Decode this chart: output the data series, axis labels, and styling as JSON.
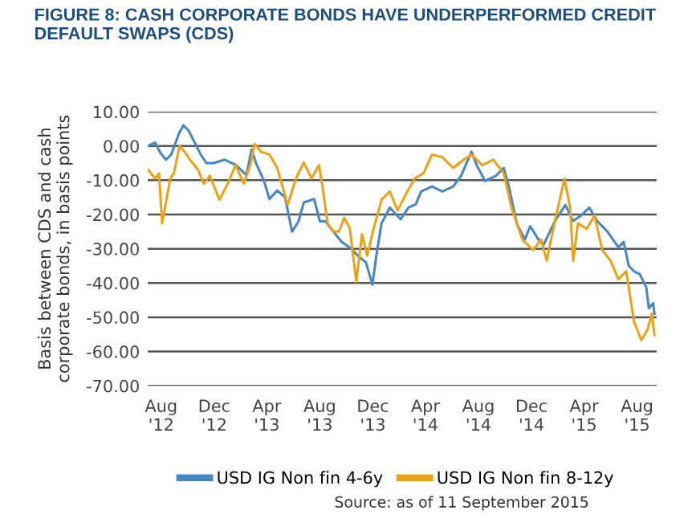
{
  "chart_data": {
    "type": "line",
    "title": "FIGURE 8: CASH CORPORATE BONDS HAVE UNDERPERFORMED CREDIT\nDEFAULT SWAPS (CDS)",
    "ylabel": "Basis between CDS and cash\ncorporate bonds, in basis points",
    "annotations": [
      "Source: as of 11 September 2015"
    ],
    "xlim": [
      "2012-07-01",
      "2015-09-15"
    ],
    "xticks": [
      {
        "value": "2012-08-01",
        "label": "Aug\n'12"
      },
      {
        "value": "2012-12-01",
        "label": "Dec\n'12"
      },
      {
        "value": "2013-04-01",
        "label": "Apr\n'13"
      },
      {
        "value": "2013-08-01",
        "label": "Aug\n'13"
      },
      {
        "value": "2013-12-01",
        "label": "Dec\n'13"
      },
      {
        "value": "2014-04-01",
        "label": "Apr\n'14"
      },
      {
        "value": "2014-08-01",
        "label": "Aug\n'14"
      },
      {
        "value": "2014-12-01",
        "label": "Dec\n'14"
      },
      {
        "value": "2015-04-01",
        "label": "Apr\n'15"
      },
      {
        "value": "2015-08-01",
        "label": "Aug\n'15"
      }
    ],
    "ylim": [
      -70,
      10
    ],
    "yticks": [
      {
        "value": 10,
        "label": "10.00"
      },
      {
        "value": 0,
        "label": "0.00"
      },
      {
        "value": -10,
        "label": "-10.00"
      },
      {
        "value": -20,
        "label": "-20.00"
      },
      {
        "value": -30,
        "label": "-30.00"
      },
      {
        "value": -40,
        "label": "-40.00"
      },
      {
        "value": -50,
        "label": "-50.00"
      },
      {
        "value": -60,
        "label": "-60.00"
      },
      {
        "value": -70,
        "label": "-70.00"
      }
    ],
    "grid": "y",
    "legend": "bottom",
    "marker": "none",
    "line_style": "solid",
    "series": [
      {
        "name": "USD IG Non fin 4-6y",
        "color": "#4a86c0",
        "x": [
          "2012-07-02",
          "2012-07-18",
          "2012-07-30",
          "2012-08-12",
          "2012-08-24",
          "2012-09-12",
          "2012-09-21",
          "2012-10-03",
          "2012-10-15",
          "2012-10-31",
          "2012-11-13",
          "2012-11-30",
          "2012-12-25",
          "2013-01-19",
          "2013-02-13",
          "2013-02-25",
          "2013-03-07",
          "2013-03-25",
          "2013-04-07",
          "2013-04-25",
          "2013-05-13",
          "2013-05-29",
          "2013-06-13",
          "2013-06-25",
          "2013-07-19",
          "2013-08-01",
          "2013-08-14",
          "2013-08-26",
          "2013-09-20",
          "2013-10-09",
          "2013-10-27",
          "2013-11-15",
          "2013-11-30",
          "2013-12-09",
          "2013-12-21",
          "2014-01-09",
          "2014-02-03",
          "2014-02-21",
          "2014-03-10",
          "2014-03-22",
          "2014-04-16",
          "2014-05-10",
          "2014-06-04",
          "2014-06-22",
          "2014-07-16",
          "2014-07-28",
          "2014-08-16",
          "2014-09-10",
          "2014-09-28",
          "2014-10-10",
          "2014-10-28",
          "2014-11-16",
          "2014-11-28",
          "2014-12-17",
          "2014-12-29",
          "2015-01-24",
          "2015-02-17",
          "2015-03-07",
          "2015-03-25",
          "2015-04-13",
          "2015-05-01",
          "2015-05-25",
          "2015-06-19",
          "2015-07-01",
          "2015-07-13",
          "2015-07-25",
          "2015-08-07",
          "2015-08-22",
          "2015-08-28",
          "2015-09-07",
          "2015-09-10"
        ],
        "values": [
          0,
          1,
          -2,
          -4,
          -2.5,
          4,
          6,
          4.5,
          1.5,
          -2.5,
          -5,
          -5,
          -4,
          -5.5,
          -8.5,
          -1,
          -5,
          -10,
          -15.5,
          -13,
          -15,
          -25,
          -22,
          -16.5,
          -15.5,
          -22,
          -22,
          -24,
          -28,
          -29.6,
          -32,
          -34,
          -40.5,
          -32,
          -22.6,
          -18,
          -21.4,
          -18,
          -17,
          -13.3,
          -11.8,
          -13.3,
          -11.8,
          -8.7,
          -1.7,
          -5.6,
          -10.2,
          -8.7,
          -6.4,
          -11.8,
          -22.6,
          -27.3,
          -23.4,
          -27.3,
          -28.8,
          -21.9,
          -17.2,
          -21.9,
          -20.3,
          -18,
          -21.9,
          -25,
          -29.6,
          -28,
          -35,
          -36.6,
          -37.4,
          -41.2,
          -47.4,
          -45.9,
          -49
        ]
      },
      {
        "name": "USD IG Non fin 8-12y",
        "color": "#e8a317",
        "x": [
          "2012-07-02",
          "2012-07-18",
          "2012-07-27",
          "2012-08-03",
          "2012-08-12",
          "2012-08-22",
          "2012-08-30",
          "2012-09-12",
          "2012-09-24",
          "2012-10-06",
          "2012-10-25",
          "2012-11-07",
          "2012-11-21",
          "2012-12-13",
          "2013-01-01",
          "2013-01-19",
          "2013-02-07",
          "2013-02-22",
          "2013-03-04",
          "2013-03-19",
          "2013-04-07",
          "2013-04-25",
          "2013-05-19",
          "2013-06-07",
          "2013-06-25",
          "2013-07-13",
          "2013-07-30",
          "2013-08-07",
          "2013-08-19",
          "2013-09-02",
          "2013-09-14",
          "2013-09-26",
          "2013-10-09",
          "2013-10-24",
          "2013-11-06",
          "2013-11-18",
          "2013-12-03",
          "2013-12-21",
          "2014-01-09",
          "2014-01-27",
          "2014-02-15",
          "2014-03-07",
          "2014-03-28",
          "2014-04-16",
          "2014-05-10",
          "2014-06-04",
          "2014-06-28",
          "2014-07-16",
          "2014-08-10",
          "2014-09-04",
          "2014-09-28",
          "2014-10-16",
          "2014-11-10",
          "2014-12-05",
          "2014-12-23",
          "2015-01-05",
          "2015-01-24",
          "2015-02-15",
          "2015-02-28",
          "2015-03-07",
          "2015-03-18",
          "2015-04-07",
          "2015-04-25",
          "2015-05-13",
          "2015-06-01",
          "2015-06-19",
          "2015-07-07",
          "2015-07-25",
          "2015-08-11",
          "2015-08-25",
          "2015-09-04",
          "2015-09-10"
        ],
        "values": [
          -7,
          -9.5,
          -8,
          -22.6,
          -16.4,
          -9.5,
          -8,
          0,
          -1.7,
          -4,
          -7,
          -11,
          -8.7,
          -15.7,
          -11,
          -5.6,
          -11,
          -5.6,
          0.6,
          -1.7,
          -2.5,
          -6.4,
          -17.2,
          -9.5,
          -4.8,
          -9.5,
          -5.6,
          -11.8,
          -22.6,
          -25,
          -25,
          -21,
          -24,
          -39.7,
          -25.7,
          -32,
          -24,
          -15.7,
          -13.3,
          -18.8,
          -14.1,
          -9.5,
          -7.9,
          -2.5,
          -3.3,
          -6.4,
          -4,
          -2.5,
          -5.6,
          -4,
          -7.9,
          -18,
          -27.3,
          -30.4,
          -27.3,
          -33.5,
          -21.9,
          -9.5,
          -18,
          -33.5,
          -22.6,
          -24.2,
          -20.3,
          -30.4,
          -33.5,
          -38.9,
          -36.6,
          -51.3,
          -56.7,
          -53.6,
          -49,
          -55.2
        ]
      }
    ]
  }
}
